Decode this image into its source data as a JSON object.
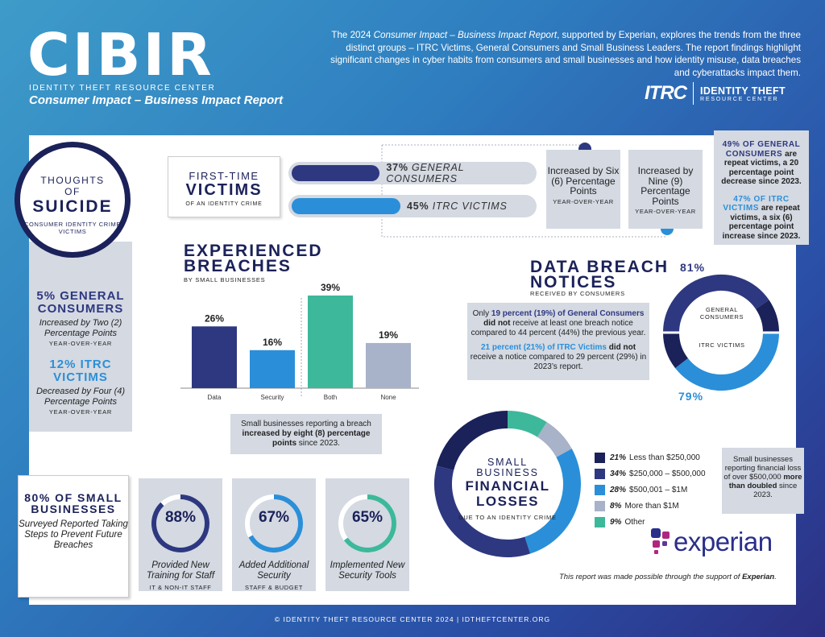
{
  "header": {
    "logo_word": "CIBIR",
    "org_name": "IDENTITY THEFT RESOURCE CENTER",
    "report_title": "Consumer Impact – Business Impact Report",
    "intro_pre": "The 2024 ",
    "intro_title": "Consumer Impact – Business Impact Report",
    "intro_post": ", supported by Experian, explores the trends from the three distinct groups – ITRC Victims, General Consumers and Small Business Leaders. The report findings highlight significant changes in cyber habits from consumers and small businesses and how identity misuse, data breaches and cyberattacks impact them.",
    "itrc_mark": "ITRC",
    "itrc_name": "IDENTITY THEFT",
    "itrc_sub": "RESOURCE CENTER"
  },
  "suicide": {
    "line1": "THOUGHTS",
    "line2": "OF",
    "line3": "SUICIDE",
    "sub": "CONSUMER IDENTITY CRIME VICTIMS",
    "general_pct": "5% GENERAL CONSUMERS",
    "general_desc": "Increased by Two (2) Percentage Points",
    "general_yoy": "YEAR-OVER-YEAR",
    "itrc_pct": "12% ITRC VICTIMS",
    "itrc_desc": "Decreased by Four (4) Percentage Points",
    "itrc_yoy": "YEAR-OVER-YEAR"
  },
  "first_time": {
    "line1": "FIRST-TIME",
    "line2": "VICTIMS",
    "line3": "OF AN IDENTITY CRIME",
    "bar1_pct": "37%",
    "bar1_value": 37,
    "bar1_label": "GENERAL CONSUMERS",
    "bar2_pct": "45%",
    "bar2_value": 45,
    "bar2_label": "ITRC VICTIMS",
    "inc1": "Increased by Six (6) Percentage Points",
    "inc1_yoy": "YEAR-OVER-YEAR",
    "inc2": "Increased by Nine (9) Percentage Points",
    "inc2_yoy": "YEAR-OVER-YEAR"
  },
  "repeat": {
    "p1_cap": "49% OF GENERAL CONSUMERS",
    "p1_rest": " are repeat victims, a 20 percentage point decrease since 2023.",
    "p2_cap": "47% OF ITRC VICTIMS",
    "p2_rest": " are repeat victims, a six (6) percentage point increase since 2023."
  },
  "breaches": {
    "title1": "EXPERIENCED",
    "title2": "BREACHES",
    "sub": "BY SMALL BUSINESSES",
    "note_pre": "Small businesses reporting a breach ",
    "note_bold": "increased by eight (8) percentage points",
    "note_post": " since 2023."
  },
  "chart_data": {
    "type": "bar",
    "title": "EXPERIENCED BREACHES",
    "subtitle": "BY SMALL BUSINESSES",
    "categories": [
      "Data",
      "Security",
      "Both",
      "None"
    ],
    "values": [
      26,
      16,
      39,
      19
    ],
    "value_labels": [
      "26%",
      "16%",
      "39%",
      "19%"
    ],
    "ylim": [
      0,
      40
    ],
    "colors": [
      "#2e3880",
      "#2a8fd8",
      "#3db89a",
      "#a8b2c8"
    ]
  },
  "notices": {
    "title1": "DATA BREACH",
    "title2": "NOTICES",
    "sub": "RECEIVED BY CONSUMERS",
    "p1_a": "Only ",
    "p1_hl": "19 percent (19%) of General Consumers",
    "p1_bold": "did not",
    "p1_rest": " receive at least one breach notice compared to 44 percent (44%) the previous year.",
    "p2_hl": "21 percent (21%) of ITRC Victims",
    "p2_bold": "did not",
    "p2_rest": " receive a notice compared to 29 percent (29%) in 2023’s report.",
    "ring_general_pct": "81%",
    "ring_general_value": 81,
    "ring_general_label": "GENERAL CONSUMERS",
    "ring_itrc_pct": "79%",
    "ring_itrc_value": 79,
    "ring_itrc_label": "ITRC VICTIMS"
  },
  "measures": {
    "headline": "80% OF SMALL BUSINESSES",
    "desc": "Surveyed Reported Taking Steps to Prevent Future Breaches",
    "cards": [
      {
        "pct": "88%",
        "value": 88,
        "label": "Provided New Training for Staff",
        "sub": "IT & NON-IT STAFF",
        "color": "#2e3880"
      },
      {
        "pct": "67%",
        "value": 67,
        "label": "Added Additional Security",
        "sub": "STAFF & BUDGET",
        "color": "#2a8fd8"
      },
      {
        "pct": "65%",
        "value": 65,
        "label": "Implemented New Security Tools",
        "sub": "",
        "color": "#3db89a"
      }
    ]
  },
  "losses": {
    "line1": "SMALL",
    "line2": "BUSINESS",
    "line3": "FINANCIAL",
    "line4": "LOSSES",
    "sub": "DUE TO AN IDENTITY CRIME",
    "legend": [
      {
        "pct": "21%",
        "label": "Less than $250,000",
        "value": 21,
        "color": "#1b2159"
      },
      {
        "pct": "34%",
        "label": "$250,000 – $500,000",
        "value": 34,
        "color": "#2e3880"
      },
      {
        "pct": "28%",
        "label": "$500,001 – $1M",
        "value": 28,
        "color": "#2a8fd8"
      },
      {
        "pct": "8%",
        "label": "More than $1M",
        "value": 8,
        "color": "#a8b2c8"
      },
      {
        "pct": "9%",
        "label": "Other",
        "value": 9,
        "color": "#3db89a"
      }
    ],
    "note_pre": "Small businesses reporting financial loss of over $500,000 ",
    "note_bold": "more than doubled",
    "note_post": " since 2023."
  },
  "sponsor": {
    "name": "experian",
    "support_pre": "This report was made possible through the support of ",
    "support_bold": "Experian",
    "support_post": "."
  },
  "footer": "© IDENTITY THEFT RESOURCE CENTER 2024  |  IDTHEFTCENTER.ORG"
}
